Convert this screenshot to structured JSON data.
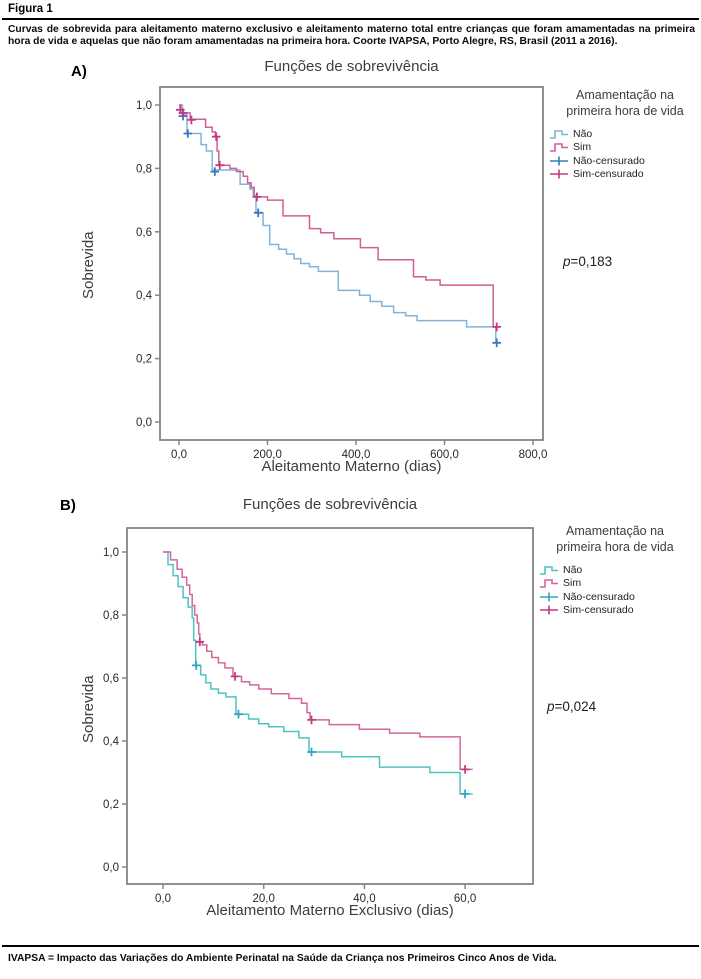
{
  "figure": {
    "label": "Figura 1",
    "caption": "Curvas de sobrevida para aleitamento materno exclusivo e aleitamento materno total entre crianças que foram amamentadas na primeira hora de vida e aquelas que não foram amamentadas na primeira hora. Coorte IVAPSA, Porto Alegre, RS, Brasil (2011 a 2016).",
    "footnote": "IVAPSA = Impacto das Variações do Ambiente Perinatal na Saúde da Criança nos Primeiros Cinco Anos de Vida."
  },
  "colors": {
    "nao_A": "#82b4db",
    "nao_A_censor": "#3879bd",
    "sim_A": "#cf5f95",
    "sim_A_censor": "#c23a7d",
    "nao_B": "#4ec4c4",
    "nao_B_censor": "#2fa6bd",
    "sim_B": "#d4669e",
    "sim_B_censor": "#c23a7d",
    "frame": "#848484",
    "tick_text": "#2a2a2a"
  },
  "chart_data": [
    {
      "id": "A",
      "type": "line",
      "subtype": "kaplan-meier-step",
      "panel_label": "A)",
      "title": "Funções de sobrevivência",
      "xlabel": "Aleitamento Materno (dias)",
      "ylabel": "Sobrevida",
      "pvalue": {
        "symbol": "p",
        "rest": "=0,183"
      },
      "xlim": [
        -43,
        823
      ],
      "ylim": [
        -0.06,
        1.06
      ],
      "grid": false,
      "legend_position": "right",
      "legend": {
        "title": "Amamentação na primeira hora de vida",
        "items": [
          {
            "label": "Não",
            "glyph": "step-line",
            "color": "#82b4db"
          },
          {
            "label": "Sim",
            "glyph": "step-line",
            "color": "#cf5f95"
          },
          {
            "label": "Não-censurado",
            "glyph": "plus-line",
            "color": "#3879bd"
          },
          {
            "label": "Sim-censurado",
            "glyph": "plus-line",
            "color": "#c23a7d"
          }
        ]
      },
      "x_ticks": [
        {
          "v": 0,
          "label": "0,0"
        },
        {
          "v": 200,
          "label": "200,0"
        },
        {
          "v": 400,
          "label": "400,0"
        },
        {
          "v": 600,
          "label": "600,0"
        },
        {
          "v": 800,
          "label": "800,0"
        }
      ],
      "y_ticks": [
        {
          "v": 1.0,
          "label": "1,0"
        },
        {
          "v": 0.8,
          "label": "0,8"
        },
        {
          "v": 0.6,
          "label": "0,6"
        },
        {
          "v": 0.4,
          "label": "0,4"
        },
        {
          "v": 0.2,
          "label": "0,2"
        },
        {
          "v": 0.0,
          "label": "0,0"
        }
      ],
      "series": [
        {
          "name": "Não",
          "color": "#82b4db",
          "censor_color": "#3879bd",
          "steps": [
            [
              0,
              1.0
            ],
            [
              8,
              0.97
            ],
            [
              18,
              0.91
            ],
            [
              50,
              0.875
            ],
            [
              62,
              0.855
            ],
            [
              75,
              0.795
            ],
            [
              138,
              0.75
            ],
            [
              160,
              0.735
            ],
            [
              168,
              0.715
            ],
            [
              174,
              0.66
            ],
            [
              190,
              0.62
            ],
            [
              205,
              0.56
            ],
            [
              225,
              0.545
            ],
            [
              243,
              0.53
            ],
            [
              260,
              0.515
            ],
            [
              275,
              0.5
            ],
            [
              295,
              0.49
            ],
            [
              315,
              0.475
            ],
            [
              360,
              0.415
            ],
            [
              408,
              0.4
            ],
            [
              432,
              0.38
            ],
            [
              458,
              0.365
            ],
            [
              485,
              0.345
            ],
            [
              512,
              0.335
            ],
            [
              538,
              0.32
            ],
            [
              650,
              0.3
            ],
            [
              716,
              0.25
            ],
            [
              722,
              0.25
            ]
          ],
          "censors": [
            [
              9,
              0.965
            ],
            [
              20,
              0.91
            ],
            [
              81,
              0.79
            ],
            [
              179,
              0.66
            ],
            [
              718,
              0.25
            ]
          ]
        },
        {
          "name": "Sim",
          "color": "#cf5f95",
          "censor_color": "#c23a7d",
          "steps": [
            [
              0,
              1.0
            ],
            [
              4,
              0.985
            ],
            [
              10,
              0.975
            ],
            [
              25,
              0.955
            ],
            [
              60,
              0.93
            ],
            [
              75,
              0.915
            ],
            [
              82,
              0.9
            ],
            [
              86,
              0.855
            ],
            [
              90,
              0.81
            ],
            [
              115,
              0.8
            ],
            [
              130,
              0.79
            ],
            [
              145,
              0.775
            ],
            [
              155,
              0.755
            ],
            [
              163,
              0.74
            ],
            [
              170,
              0.71
            ],
            [
              200,
              0.7
            ],
            [
              235,
              0.65
            ],
            [
              295,
              0.61
            ],
            [
              320,
              0.597
            ],
            [
              350,
              0.578
            ],
            [
              410,
              0.55
            ],
            [
              450,
              0.512
            ],
            [
              530,
              0.458
            ],
            [
              558,
              0.448
            ],
            [
              590,
              0.432
            ],
            [
              710,
              0.3
            ],
            [
              722,
              0.3
            ]
          ],
          "censors": [
            [
              3,
              0.985
            ],
            [
              9,
              0.975
            ],
            [
              28,
              0.953
            ],
            [
              84,
              0.9
            ],
            [
              92,
              0.81
            ],
            [
              176,
              0.71
            ],
            [
              718,
              0.3
            ]
          ]
        }
      ]
    },
    {
      "id": "B",
      "type": "line",
      "subtype": "kaplan-meier-step",
      "panel_label": "B)",
      "title": "Funções de sobrevivência",
      "xlabel": "Aleitamento Materno Exclusivo (dias)",
      "ylabel": "Sobrevida",
      "pvalue": {
        "symbol": "p",
        "rest": "=0,024"
      },
      "xlim": [
        -7,
        73
      ],
      "ylim": [
        -0.06,
        1.08
      ],
      "grid": false,
      "legend_position": "right",
      "legend": {
        "title": "Amamentação na primeira hora de vida",
        "items": [
          {
            "label": "Não",
            "glyph": "step-line",
            "color": "#4ec4c4"
          },
          {
            "label": "Sim",
            "glyph": "step-line",
            "color": "#d4669e"
          },
          {
            "label": "Não-censurado",
            "glyph": "plus-line",
            "color": "#2fa6bd"
          },
          {
            "label": "Sim-censurado",
            "glyph": "plus-line",
            "color": "#c23a7d"
          }
        ]
      },
      "x_ticks": [
        {
          "v": 0,
          "label": "0,0"
        },
        {
          "v": 20,
          "label": "20,0"
        },
        {
          "v": 40,
          "label": "40,0"
        },
        {
          "v": 60,
          "label": "60,0"
        }
      ],
      "y_ticks": [
        {
          "v": 1.0,
          "label": "1,0"
        },
        {
          "v": 0.8,
          "label": "0,8"
        },
        {
          "v": 0.6,
          "label": "0,6"
        },
        {
          "v": 0.4,
          "label": "0,4"
        },
        {
          "v": 0.2,
          "label": "0,2"
        },
        {
          "v": 0.0,
          "label": "0,0"
        }
      ],
      "series": [
        {
          "name": "Não",
          "color": "#4ec4c4",
          "censor_color": "#2fa6bd",
          "steps": [
            [
              0,
              1.0
            ],
            [
              1,
              0.96
            ],
            [
              2,
              0.925
            ],
            [
              3,
              0.89
            ],
            [
              4,
              0.855
            ],
            [
              5,
              0.825
            ],
            [
              5.8,
              0.79
            ],
            [
              6.1,
              0.72
            ],
            [
              6.5,
              0.64
            ],
            [
              7.5,
              0.61
            ],
            [
              8.5,
              0.585
            ],
            [
              9.5,
              0.565
            ],
            [
              11,
              0.552
            ],
            [
              12.5,
              0.54
            ],
            [
              14.5,
              0.485
            ],
            [
              17,
              0.47
            ],
            [
              19,
              0.455
            ],
            [
              21,
              0.445
            ],
            [
              24,
              0.43
            ],
            [
              27,
              0.41
            ],
            [
              29,
              0.365
            ],
            [
              35.5,
              0.35
            ],
            [
              43,
              0.317
            ],
            [
              53,
              0.3
            ],
            [
              59,
              0.232
            ],
            [
              61.5,
              0.232
            ]
          ],
          "censors": [
            [
              6.6,
              0.64
            ],
            [
              15,
              0.485
            ],
            [
              29.5,
              0.365
            ],
            [
              60,
              0.232
            ]
          ]
        },
        {
          "name": "Sim",
          "color": "#d4669e",
          "censor_color": "#c23a7d",
          "steps": [
            [
              0,
              1.0
            ],
            [
              1.5,
              0.975
            ],
            [
              2.8,
              0.945
            ],
            [
              3.8,
              0.92
            ],
            [
              4.7,
              0.895
            ],
            [
              5.3,
              0.865
            ],
            [
              5.8,
              0.83
            ],
            [
              6.3,
              0.8
            ],
            [
              6.8,
              0.775
            ],
            [
              7.1,
              0.74
            ],
            [
              7.3,
              0.715
            ],
            [
              7.8,
              0.705
            ],
            [
              8.7,
              0.685
            ],
            [
              9.7,
              0.665
            ],
            [
              11,
              0.648
            ],
            [
              12.3,
              0.632
            ],
            [
              13.9,
              0.605
            ],
            [
              15.6,
              0.588
            ],
            [
              17.2,
              0.578
            ],
            [
              19,
              0.565
            ],
            [
              21.5,
              0.55
            ],
            [
              25,
              0.535
            ],
            [
              27.5,
              0.52
            ],
            [
              28.6,
              0.49
            ],
            [
              29.2,
              0.467
            ],
            [
              33,
              0.452
            ],
            [
              39,
              0.437
            ],
            [
              45,
              0.425
            ],
            [
              51,
              0.413
            ],
            [
              59,
              0.31
            ],
            [
              61.5,
              0.31
            ]
          ],
          "censors": [
            [
              7.3,
              0.715
            ],
            [
              14.3,
              0.605
            ],
            [
              29.5,
              0.467
            ],
            [
              60,
              0.31
            ]
          ]
        }
      ]
    }
  ]
}
